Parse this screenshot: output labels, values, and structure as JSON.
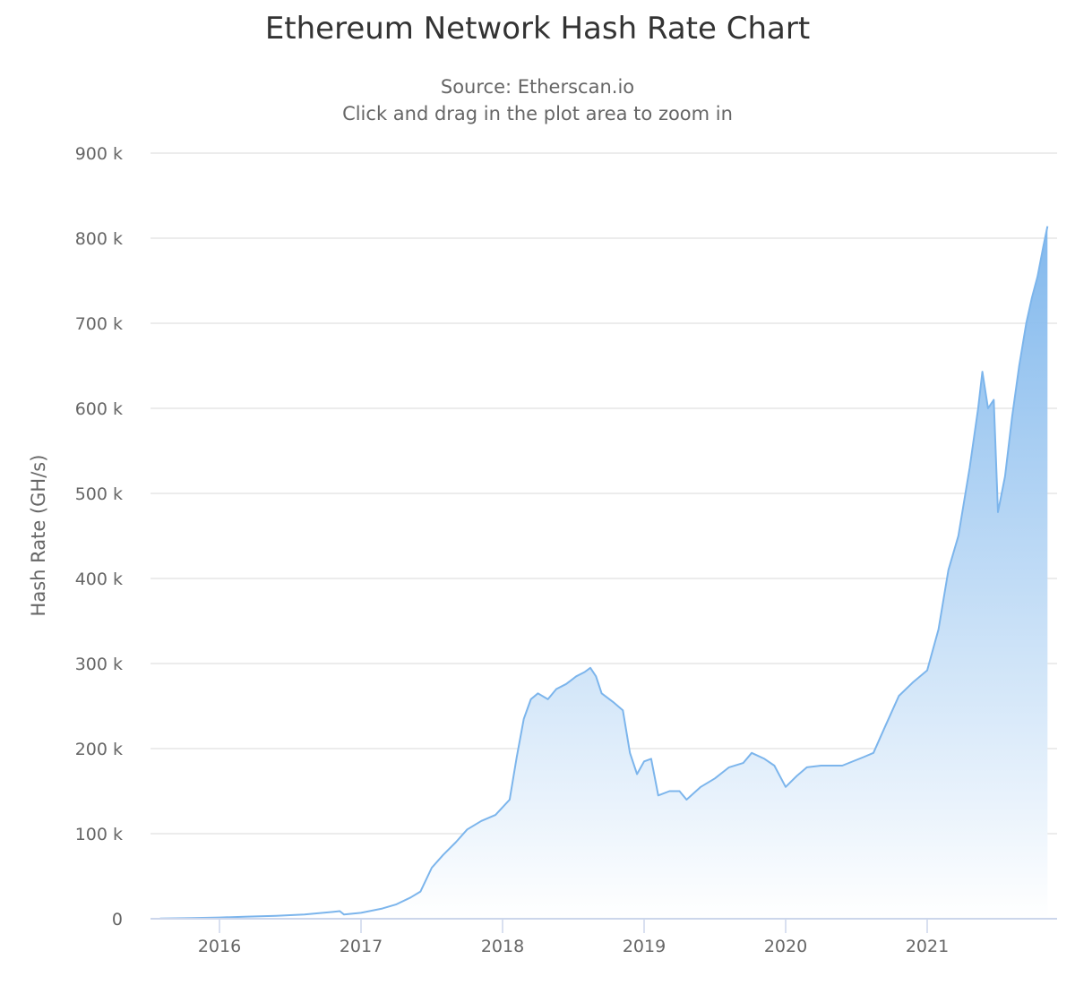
{
  "header": {
    "title": "Ethereum Network Hash Rate Chart",
    "subtitle_source": "Source: Etherscan.io",
    "subtitle_hint": "Click and drag in the plot area to zoom in"
  },
  "axes": {
    "y_title": "Hash Rate (GH/s)",
    "y_ticks": [
      {
        "value": 0,
        "label": "0"
      },
      {
        "value": 100000,
        "label": "100 k"
      },
      {
        "value": 200000,
        "label": "200 k"
      },
      {
        "value": 300000,
        "label": "300 k"
      },
      {
        "value": 400000,
        "label": "400 k"
      },
      {
        "value": 500000,
        "label": "500 k"
      },
      {
        "value": 600000,
        "label": "600 k"
      },
      {
        "value": 700000,
        "label": "700 k"
      },
      {
        "value": 800000,
        "label": "800 k"
      },
      {
        "value": 900000,
        "label": "900 k"
      }
    ],
    "x_ticks": [
      {
        "value": 2016,
        "label": "2016"
      },
      {
        "value": 2017,
        "label": "2017"
      },
      {
        "value": 2018,
        "label": "2018"
      },
      {
        "value": 2019,
        "label": "2019"
      },
      {
        "value": 2020,
        "label": "2020"
      },
      {
        "value": 2021,
        "label": "2021"
      }
    ]
  },
  "colors": {
    "line": "#7cb5ec",
    "fill_top": "#7cb5ec",
    "fill_bottom": "#ffffff",
    "grid": "#e6e6e6",
    "axis": "#ccd6eb"
  },
  "chart_data": {
    "type": "area",
    "title": "Ethereum Network Hash Rate Chart",
    "subtitle": "Source: Etherscan.io / Click and drag in the plot area to zoom in",
    "xlabel": "",
    "ylabel": "Hash Rate (GH/s)",
    "ylim": [
      0,
      900000
    ],
    "xlim": [
      2015.55,
      2021.9
    ],
    "grid": true,
    "legend": "none",
    "series": [
      {
        "name": "Hash Rate (GH/s)",
        "x": [
          2015.58,
          2015.8,
          2016.0,
          2016.2,
          2016.4,
          2016.6,
          2016.8,
          2016.85,
          2016.88,
          2017.0,
          2017.15,
          2017.25,
          2017.35,
          2017.42,
          2017.5,
          2017.58,
          2017.67,
          2017.75,
          2017.85,
          2017.95,
          2018.05,
          2018.1,
          2018.15,
          2018.2,
          2018.25,
          2018.32,
          2018.38,
          2018.45,
          2018.52,
          2018.58,
          2018.62,
          2018.66,
          2018.7,
          2018.78,
          2018.85,
          2018.9,
          2018.95,
          2019.0,
          2019.05,
          2019.1,
          2019.18,
          2019.25,
          2019.3,
          2019.4,
          2019.5,
          2019.6,
          2019.7,
          2019.76,
          2019.85,
          2019.92,
          2020.0,
          2020.08,
          2020.15,
          2020.25,
          2020.4,
          2020.55,
          2020.62,
          2020.7,
          2020.8,
          2020.9,
          2021.0,
          2021.08,
          2021.15,
          2021.22,
          2021.3,
          2021.36,
          2021.39,
          2021.43,
          2021.47,
          2021.5,
          2021.55,
          2021.6,
          2021.65,
          2021.7,
          2021.74,
          2021.78,
          2021.82,
          2021.85
        ],
        "values": [
          300,
          800,
          1500,
          2500,
          3500,
          5000,
          8000,
          9000,
          5000,
          7000,
          12000,
          17000,
          25000,
          32000,
          60000,
          75000,
          90000,
          105000,
          115000,
          122000,
          140000,
          190000,
          235000,
          258000,
          265000,
          258000,
          270000,
          276000,
          285000,
          290000,
          295000,
          285000,
          265000,
          255000,
          245000,
          195000,
          170000,
          185000,
          188000,
          145000,
          150000,
          150000,
          140000,
          155000,
          165000,
          178000,
          183000,
          195000,
          188000,
          180000,
          155000,
          168000,
          178000,
          180000,
          180000,
          190000,
          195000,
          225000,
          262000,
          278000,
          292000,
          340000,
          410000,
          450000,
          530000,
          600000,
          643000,
          600000,
          610000,
          478000,
          520000,
          590000,
          650000,
          700000,
          730000,
          755000,
          790000,
          814000
        ]
      }
    ]
  }
}
